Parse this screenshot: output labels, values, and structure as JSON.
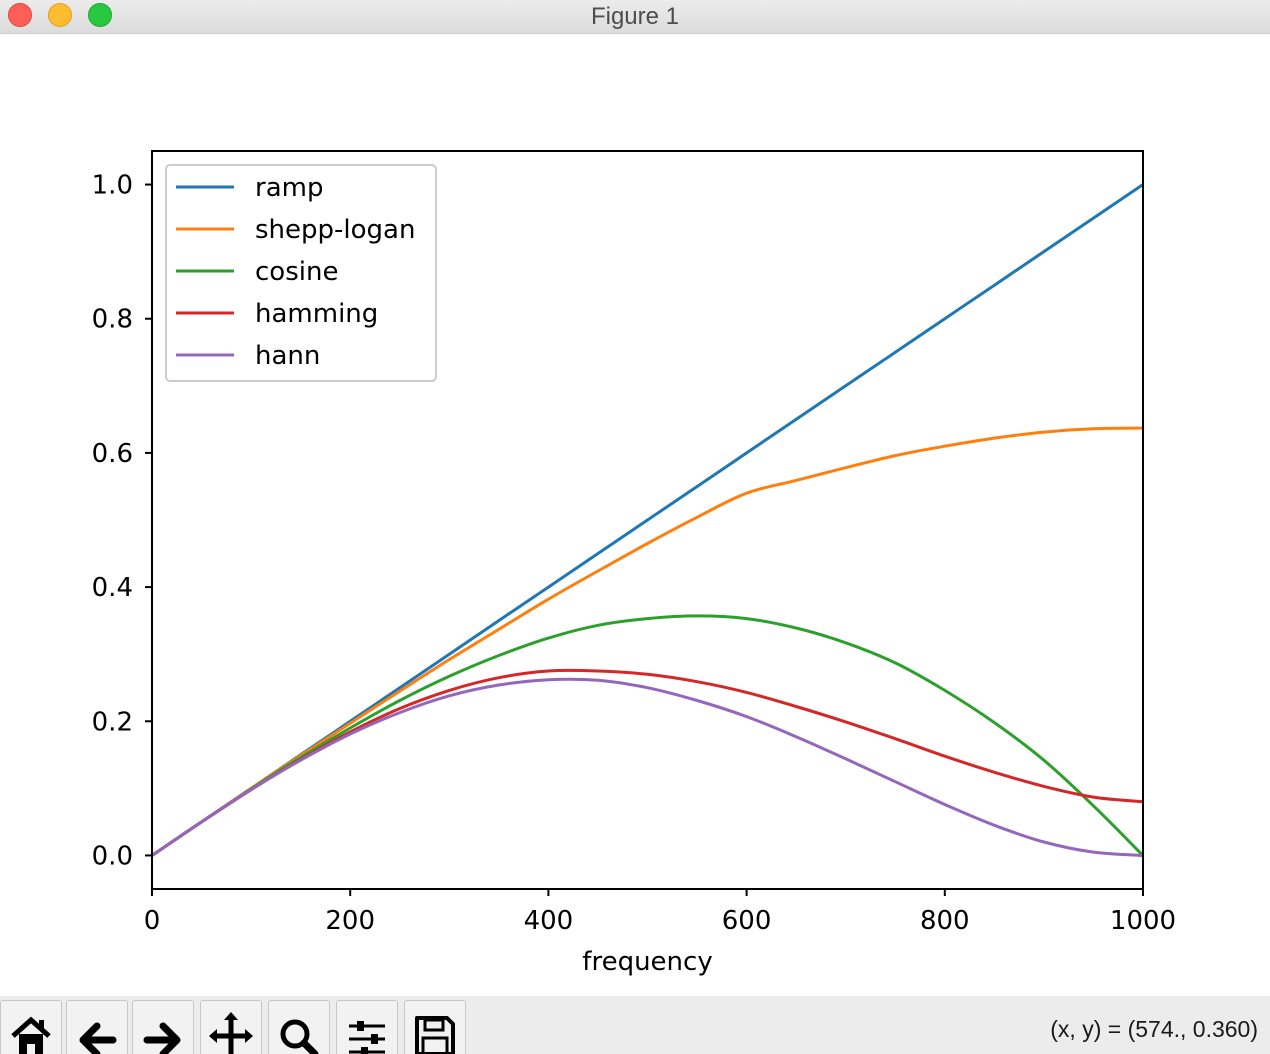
{
  "window": {
    "title": "Figure 1"
  },
  "toolbar": {
    "buttons": [
      {
        "icon": "home-icon"
      },
      {
        "icon": "back-arrow-icon"
      },
      {
        "icon": "forward-arrow-icon"
      },
      {
        "icon": "pan-icon"
      },
      {
        "icon": "zoom-icon"
      },
      {
        "icon": "configure-subplots-icon"
      },
      {
        "icon": "save-icon"
      }
    ],
    "coordinates": "(x, y) = (574., 0.360)"
  },
  "chart_data": {
    "type": "line",
    "title": "",
    "xlabel": "frequency",
    "ylabel": "",
    "xlim": [
      0,
      1000
    ],
    "ylim": [
      -0.05,
      1.05
    ],
    "xticks": [
      0,
      200,
      400,
      600,
      800,
      1000
    ],
    "xtick_labels": [
      "0",
      "200",
      "400",
      "600",
      "800",
      "1000"
    ],
    "yticks": [
      0.0,
      0.2,
      0.4,
      0.6,
      0.8,
      1.0
    ],
    "ytick_labels": [
      "0.0",
      "0.2",
      "0.4",
      "0.6",
      "0.8",
      "1.0"
    ],
    "grid": false,
    "legend_position": "upper left",
    "x": [
      0,
      50,
      100,
      150,
      200,
      250,
      300,
      350,
      400,
      450,
      500,
      550,
      600,
      650,
      700,
      750,
      800,
      850,
      900,
      950,
      1000
    ],
    "series": [
      {
        "name": "ramp",
        "color": "#1f77b4",
        "values": [
          0.0,
          0.05,
          0.1,
          0.15,
          0.2,
          0.25,
          0.3,
          0.35,
          0.4,
          0.45,
          0.5,
          0.55,
          0.6,
          0.65,
          0.7,
          0.75,
          0.8,
          0.85,
          0.9,
          0.95,
          1.0
        ]
      },
      {
        "name": "shepp-logan",
        "color": "#ff7f0e",
        "values": [
          0.0,
          0.05,
          0.1,
          0.149,
          0.197,
          0.245,
          0.292,
          0.337,
          0.382,
          0.424,
          0.465,
          0.504,
          0.54,
          0.559,
          0.578,
          0.596,
          0.61,
          0.622,
          0.631,
          0.636,
          0.637
        ]
      },
      {
        "name": "cosine",
        "color": "#2ca02c",
        "values": [
          0.0,
          0.05,
          0.099,
          0.146,
          0.19,
          0.231,
          0.267,
          0.298,
          0.324,
          0.343,
          0.353,
          0.357,
          0.353,
          0.339,
          0.317,
          0.287,
          0.246,
          0.198,
          0.142,
          0.074,
          0.0
        ]
      },
      {
        "name": "hamming",
        "color": "#d62728",
        "values": [
          0.0,
          0.05,
          0.098,
          0.143,
          0.184,
          0.219,
          0.246,
          0.265,
          0.275,
          0.275,
          0.27,
          0.259,
          0.243,
          0.222,
          0.199,
          0.174,
          0.148,
          0.124,
          0.103,
          0.087,
          0.08
        ]
      },
      {
        "name": "hann",
        "color": "#9467bd",
        "values": [
          0.0,
          0.05,
          0.098,
          0.142,
          0.181,
          0.213,
          0.238,
          0.254,
          0.262,
          0.261,
          0.25,
          0.231,
          0.207,
          0.177,
          0.144,
          0.11,
          0.076,
          0.045,
          0.02,
          0.005,
          0.0
        ]
      }
    ]
  }
}
